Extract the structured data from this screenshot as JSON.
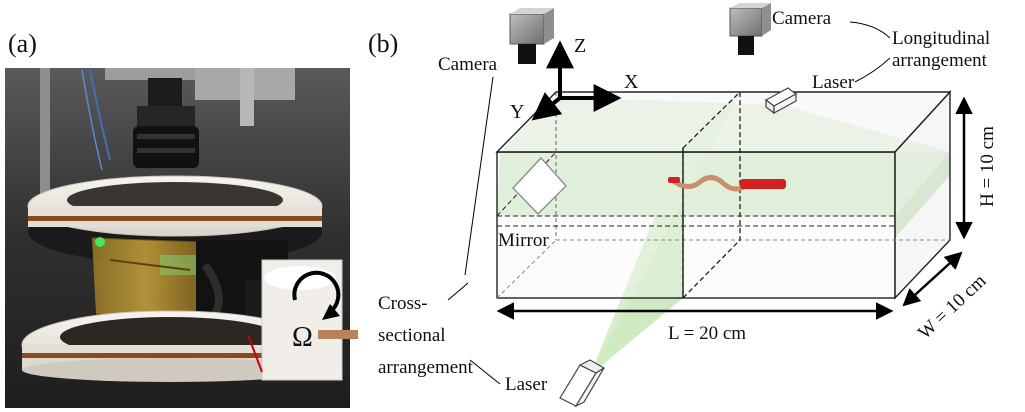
{
  "panel_a": {
    "label": "(a)",
    "omega_symbol": "Ω"
  },
  "panel_b": {
    "label": "(b)",
    "axes": {
      "z": "Z",
      "x": "X",
      "y": "Y"
    },
    "camera_left": "Camera",
    "camera_right": "Camera",
    "longitudinal_line1": "Longitudinal",
    "longitudinal_line2": "arrangement",
    "laser_top": "Laser",
    "laser_bottom": "Laser",
    "mirror": "Mirror",
    "cross_line1": "Cross-",
    "cross_line2": "sectional",
    "cross_line3": "arrangement",
    "height_label": "H = 10 cm",
    "width_label": "W = 10 cm",
    "length_label": "L = 20 cm"
  },
  "colors": {
    "laser_sheet": "#a9dc93",
    "worm_head": "#d32020",
    "worm_body": "#c98f6b",
    "photo_background": "#3a3a3a",
    "ring": "#ece8e2",
    "coil": "#8a4a20"
  }
}
